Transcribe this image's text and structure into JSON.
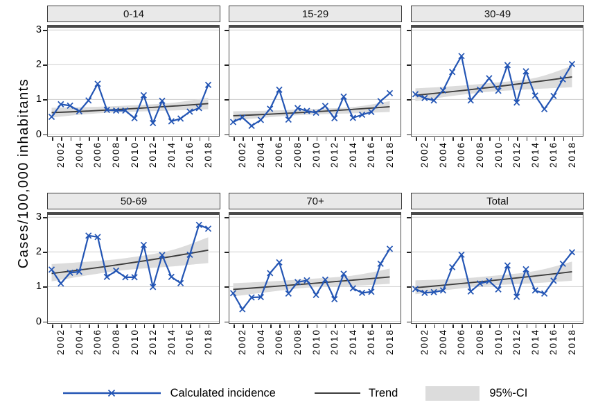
{
  "figure": {
    "ylabel": "Cases/100,000 inhabitants",
    "y_tick_labels": [
      "0",
      "1",
      "2",
      "3"
    ],
    "x_tick_labels": [
      "2002",
      "2004",
      "2006",
      "2008",
      "2010",
      "2012",
      "2014",
      "2016",
      "2018"
    ],
    "colors": {
      "incidence": "#2355b4",
      "trend": "#3d3d3d",
      "ci_fill": "#dcdcdc",
      "header_fill": "#e9e9e9",
      "panel_border": "#4a4a4a",
      "grid": "#d4d4d4"
    }
  },
  "legend": {
    "incidence": "Calculated incidence",
    "trend": "Trend",
    "ci": "95%-CI"
  },
  "chart_data": {
    "type": "line",
    "x": [
      2001,
      2002,
      2003,
      2004,
      2005,
      2006,
      2007,
      2008,
      2009,
      2010,
      2011,
      2012,
      2013,
      2014,
      2015,
      2016,
      2017,
      2018
    ],
    "ylim": [
      0,
      3
    ],
    "y_ticks": [
      0,
      1,
      2,
      3
    ],
    "ylabel": "Cases/100,000 inhabitants",
    "grid": true,
    "legend_position": "bottom",
    "ci_sample_years": [
      2001,
      2005,
      2009,
      2014,
      2018
    ],
    "panels": [
      {
        "label": "0-14",
        "values": [
          0.5,
          0.86,
          0.82,
          0.66,
          0.97,
          1.45,
          0.7,
          0.68,
          0.68,
          0.46,
          1.12,
          0.32,
          0.96,
          0.37,
          0.45,
          0.65,
          0.75,
          1.42
        ],
        "trend": [
          0.62,
          0.73,
          0.88
        ],
        "ci_lo": [
          0.48,
          0.58,
          0.64,
          0.68,
          0.72
        ],
        "ci_hi": [
          0.76,
          0.78,
          0.82,
          0.9,
          1.05
        ]
      },
      {
        "label": "15-29",
        "values": [
          0.35,
          0.48,
          0.24,
          0.41,
          0.73,
          1.28,
          0.42,
          0.75,
          0.67,
          0.62,
          0.81,
          0.46,
          1.08,
          0.47,
          0.56,
          0.64,
          0.95,
          1.18
        ],
        "trend": [
          0.53,
          0.64,
          0.79
        ],
        "ci_lo": [
          0.4,
          0.49,
          0.56,
          0.6,
          0.64
        ],
        "ci_hi": [
          0.66,
          0.68,
          0.72,
          0.78,
          0.95
        ]
      },
      {
        "label": "30-49",
        "values": [
          1.15,
          1.04,
          0.97,
          1.26,
          1.79,
          2.25,
          0.97,
          1.28,
          1.61,
          1.25,
          1.99,
          0.91,
          1.81,
          1.11,
          0.72,
          1.1,
          1.58,
          2.02
        ],
        "trend": [
          1.12,
          1.36,
          1.65
        ],
        "ci_lo": [
          0.95,
          1.1,
          1.22,
          1.3,
          1.35
        ],
        "ci_hi": [
          1.32,
          1.38,
          1.47,
          1.62,
          1.97
        ]
      },
      {
        "label": "50-69",
        "values": [
          1.49,
          1.09,
          1.4,
          1.43,
          2.47,
          2.43,
          1.28,
          1.46,
          1.27,
          1.27,
          2.2,
          0.99,
          1.91,
          1.28,
          1.1,
          1.92,
          2.78,
          2.67
        ],
        "trend": [
          1.38,
          1.68,
          2.05
        ],
        "ci_lo": [
          1.15,
          1.33,
          1.48,
          1.58,
          1.68
        ],
        "ci_hi": [
          1.65,
          1.72,
          1.82,
          2.05,
          2.42
        ]
      },
      {
        "label": "70+",
        "values": [
          0.81,
          0.35,
          0.69,
          0.7,
          1.39,
          1.7,
          0.8,
          1.13,
          1.18,
          0.76,
          1.2,
          0.64,
          1.37,
          0.95,
          0.82,
          0.85,
          1.66,
          2.09
        ],
        "trend": [
          0.92,
          1.09,
          1.28
        ],
        "ci_lo": [
          0.72,
          0.85,
          0.97,
          1.02,
          1.08
        ],
        "ci_hi": [
          1.1,
          1.15,
          1.22,
          1.32,
          1.52
        ]
      },
      {
        "label": "Total",
        "values": [
          0.93,
          0.82,
          0.84,
          0.89,
          1.56,
          1.92,
          0.86,
          1.09,
          1.16,
          0.92,
          1.61,
          0.71,
          1.5,
          0.89,
          0.8,
          1.17,
          1.66,
          1.99
        ],
        "trend": [
          0.97,
          1.18,
          1.43
        ],
        "ci_lo": [
          0.78,
          0.92,
          1.03,
          1.1,
          1.17
        ],
        "ci_hi": [
          1.18,
          1.22,
          1.3,
          1.45,
          1.72
        ]
      }
    ]
  }
}
